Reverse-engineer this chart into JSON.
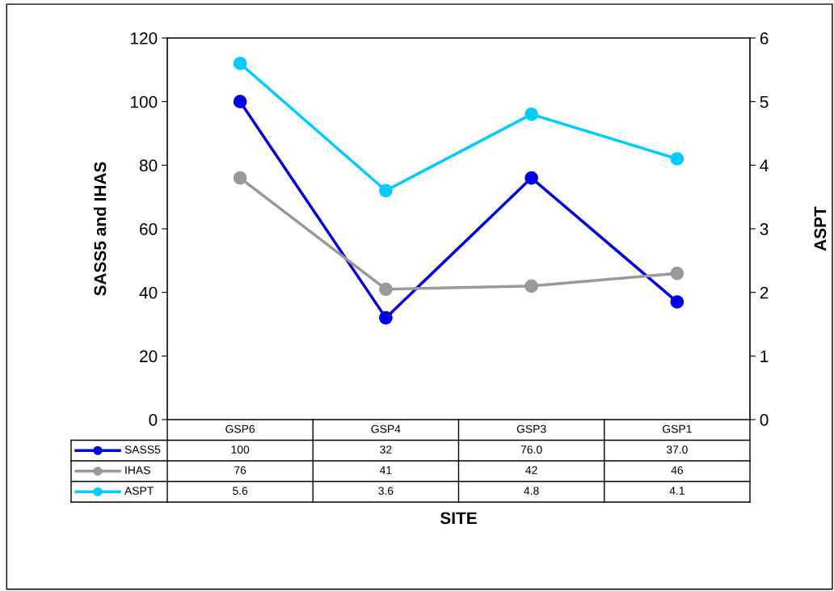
{
  "chart_data": {
    "type": "line",
    "xlabel": "SITE",
    "ylabel": "SASS5 and IHAS",
    "y2label": "ASPT",
    "categories": [
      "GSP6",
      "GSP4",
      "GSP3",
      "GSP1"
    ],
    "series": [
      {
        "name": "SASS5",
        "color": "#0000e6",
        "values": [
          100,
          32,
          76,
          37
        ],
        "value_labels": [
          "100",
          "32",
          "76.0",
          "37.0"
        ]
      },
      {
        "name": "IHAS",
        "color": "#999999",
        "values": [
          76,
          41,
          42,
          46
        ],
        "value_labels": [
          "76",
          "41",
          "42",
          "46"
        ]
      },
      {
        "name": "ASPT",
        "color": "#00ccff",
        "axis": "y2",
        "values": [
          5.6,
          3.6,
          4.8,
          4.1
        ],
        "value_labels": [
          "5.6",
          "3.6",
          "4.8",
          "4.1"
        ]
      }
    ],
    "ylim": [
      0,
      120
    ],
    "yticks": [
      0,
      20,
      40,
      60,
      80,
      100,
      120
    ],
    "y2lim": [
      0,
      6
    ],
    "y2ticks": [
      0,
      1,
      2,
      3,
      4,
      5,
      6
    ],
    "marker": "circle",
    "line_style": "solid",
    "grid": false,
    "legend": "bottom"
  }
}
